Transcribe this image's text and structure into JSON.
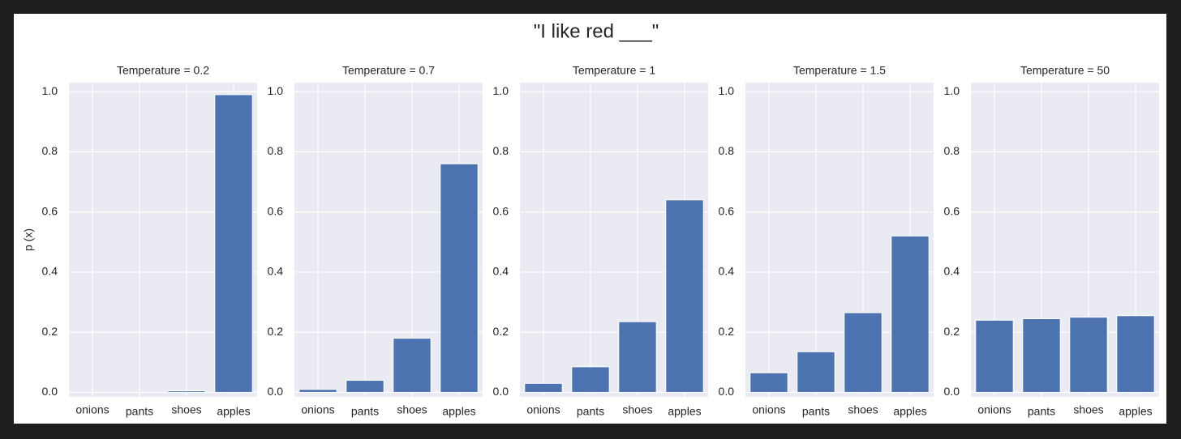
{
  "title": "\"I like red ___\"",
  "chart_data": [
    {
      "type": "bar",
      "title": "Temperature = 0.2",
      "y_label": "p (x)",
      "categories": [
        "onions",
        "pants",
        "shoes",
        "apples"
      ],
      "values": [
        0.0,
        0.0,
        0.005,
        0.99
      ],
      "color": "#4c72b0",
      "ylim": [
        -0.015,
        1.03
      ],
      "yticks": [
        {
          "value": 0,
          "label": "0.0"
        },
        0.2,
        0.4,
        0.6,
        0.8,
        {
          "value": 1,
          "label": "1.0"
        }
      ],
      "grid": true
    },
    {
      "type": "bar",
      "title": "Temperature = 0.7",
      "categories": [
        "onions",
        "pants",
        "shoes",
        "apples"
      ],
      "values": [
        0.01,
        0.04,
        0.18,
        0.76
      ],
      "color": "#4c72b0",
      "ylim": [
        -0.015,
        1.03
      ],
      "yticks": [
        {
          "value": 0,
          "label": "0.0"
        },
        0.2,
        0.4,
        0.6,
        0.8,
        {
          "value": 1,
          "label": "1.0"
        }
      ],
      "grid": true
    },
    {
      "type": "bar",
      "title": "Temperature = 1",
      "categories": [
        "onions",
        "pants",
        "shoes",
        "apples"
      ],
      "values": [
        0.03,
        0.085,
        0.235,
        0.64
      ],
      "color": "#4c72b0",
      "ylim": [
        -0.015,
        1.03
      ],
      "yticks": [
        {
          "value": 0,
          "label": "0.0"
        },
        0.2,
        0.4,
        0.6,
        0.8,
        {
          "value": 1,
          "label": "1.0"
        }
      ],
      "grid": true
    },
    {
      "type": "bar",
      "title": "Temperature = 1.5",
      "categories": [
        "onions",
        "pants",
        "shoes",
        "apples"
      ],
      "values": [
        0.065,
        0.135,
        0.265,
        0.52
      ],
      "color": "#4c72b0",
      "ylim": [
        -0.015,
        1.03
      ],
      "yticks": [
        {
          "value": 0,
          "label": "0.0"
        },
        0.2,
        0.4,
        0.6,
        0.8,
        {
          "value": 1,
          "label": "1.0"
        }
      ],
      "grid": true
    },
    {
      "type": "bar",
      "title": "Temperature = 50",
      "categories": [
        "onions",
        "pants",
        "shoes",
        "apples"
      ],
      "values": [
        0.24,
        0.245,
        0.25,
        0.255
      ],
      "color": "#4c72b0",
      "ylim": [
        -0.015,
        1.03
      ],
      "yticks": [
        {
          "value": 0,
          "label": "0.0"
        },
        0.2,
        0.4,
        0.6,
        0.8,
        {
          "value": 1,
          "label": "1.0"
        }
      ],
      "grid": true
    }
  ]
}
